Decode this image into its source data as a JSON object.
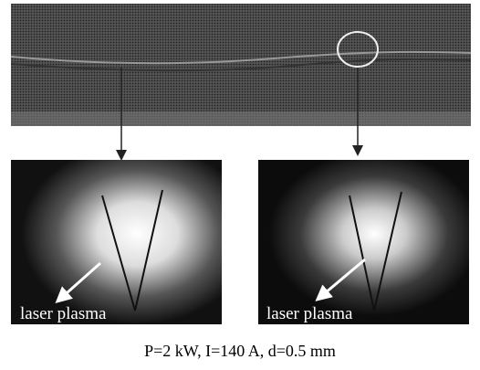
{
  "panels": [
    {
      "label": "laser plasma"
    },
    {
      "label": "laser plasma"
    }
  ],
  "caption": "P=2 kW, I=140 A, d=0.5 mm"
}
